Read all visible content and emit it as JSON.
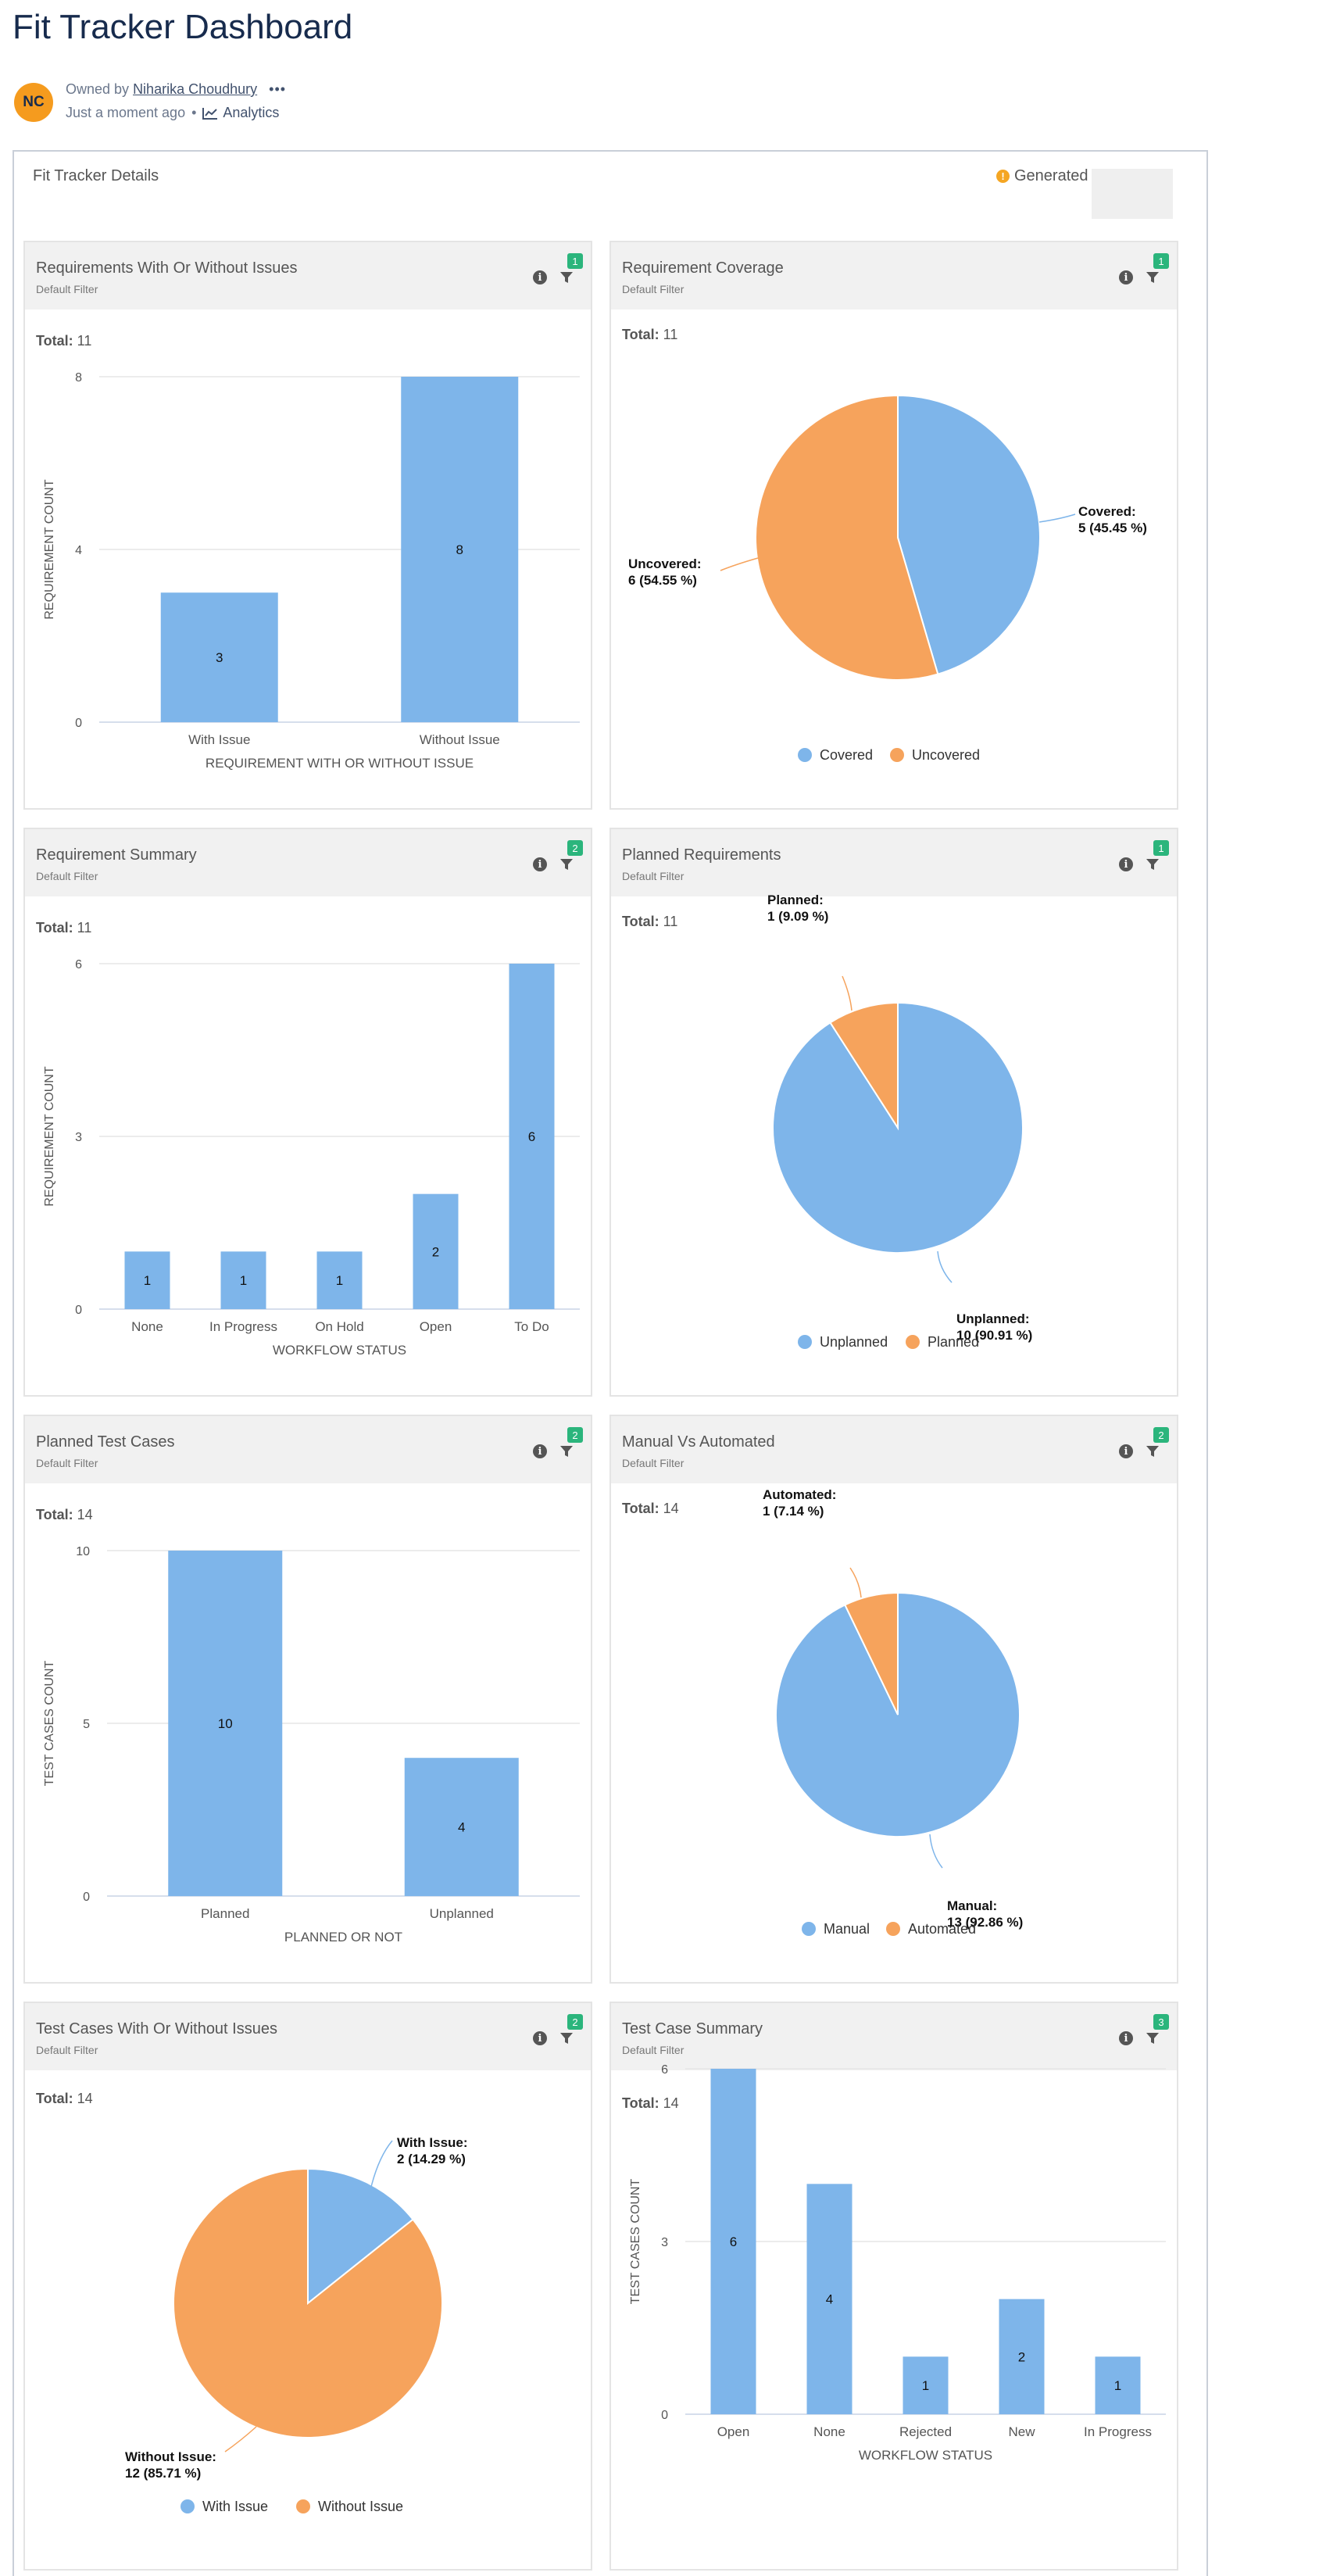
{
  "page": {
    "title": "Fit Tracker Dashboard",
    "avatar_initials": "NC",
    "owned_by_prefix": "Owned by",
    "owner": "Niharika Choudhury",
    "more": "•••",
    "time": "Just a moment ago",
    "separator": "•",
    "analytics": "Analytics"
  },
  "panel": {
    "title": "Fit Tracker Details",
    "generated": "Generated"
  },
  "colors": {
    "blue": "#7eb5ea",
    "orange": "#f6a35c",
    "badge": "#2bb57c"
  },
  "cards": [
    {
      "title": "Requirements With Or Without Issues",
      "subtitle": "Default Filter",
      "badge": "1",
      "total_label": "Total:",
      "total": "11",
      "chart_data": {
        "type": "bar",
        "categories": [
          "With Issue",
          "Without Issue"
        ],
        "values": [
          3,
          8
        ],
        "ylim": [
          0,
          8
        ],
        "yticks": [
          0,
          4,
          8
        ],
        "xlabel": "REQUIREMENT WITH OR WITHOUT ISSUE",
        "ylabel": "REQUIREMENT COUNT",
        "grid": true
      }
    },
    {
      "title": "Requirement Coverage",
      "subtitle": "Default Filter",
      "badge": "1",
      "total_label": "Total:",
      "total": "11",
      "chart_data": {
        "type": "pie",
        "slices": [
          {
            "name": "Covered",
            "value": 5,
            "label": [
              "Covered:",
              "5 (45.45 %)"
            ],
            "color": "#7eb5ea"
          },
          {
            "name": "Uncovered",
            "value": 6,
            "label": [
              "Uncovered:",
              "6 (54.55 %)"
            ],
            "color": "#f6a35c"
          }
        ],
        "legend": [
          "Covered",
          "Uncovered"
        ],
        "legend_position": "bottom"
      }
    },
    {
      "title": "Requirement Summary",
      "subtitle": "Default Filter",
      "badge": "2",
      "total_label": "Total:",
      "total": "11",
      "chart_data": {
        "type": "bar",
        "categories": [
          "None",
          "In Progress",
          "On Hold",
          "Open",
          "To Do"
        ],
        "values": [
          1,
          1,
          1,
          2,
          6
        ],
        "ylim": [
          0,
          6
        ],
        "yticks": [
          0,
          3,
          6
        ],
        "xlabel": "WORKFLOW STATUS",
        "ylabel": "REQUIREMENT COUNT",
        "grid": true
      }
    },
    {
      "title": "Planned Requirements",
      "subtitle": "Default Filter",
      "badge": "1",
      "total_label": "Total:",
      "total": "11",
      "chart_data": {
        "type": "pie",
        "slices": [
          {
            "name": "Unplanned",
            "value": 10,
            "label": [
              "Unplanned:",
              "10 (90.91 %)"
            ],
            "color": "#7eb5ea"
          },
          {
            "name": "Planned",
            "value": 1,
            "label": [
              "Planned:",
              "1 (9.09 %)"
            ],
            "color": "#f6a35c"
          }
        ],
        "legend": [
          "Unplanned",
          "Planned"
        ],
        "legend_position": "bottom"
      }
    },
    {
      "title": "Planned Test Cases",
      "subtitle": "Default Filter",
      "badge": "2",
      "total_label": "Total:",
      "total": "14",
      "chart_data": {
        "type": "bar",
        "categories": [
          "Planned",
          "Unplanned"
        ],
        "values": [
          10,
          4
        ],
        "ylim": [
          0,
          10
        ],
        "yticks": [
          0,
          5,
          10
        ],
        "xlabel": "PLANNED OR NOT",
        "ylabel": "TEST CASES COUNT",
        "grid": true
      }
    },
    {
      "title": "Manual Vs Automated",
      "subtitle": "Default Filter",
      "badge": "2",
      "total_label": "Total:",
      "total": "14",
      "chart_data": {
        "type": "pie",
        "slices": [
          {
            "name": "Manual",
            "value": 13,
            "label": [
              "Manual:",
              "13 (92.86 %)"
            ],
            "color": "#7eb5ea"
          },
          {
            "name": "Automated",
            "value": 1,
            "label": [
              "Automated:",
              "1 (7.14 %)"
            ],
            "color": "#f6a35c"
          }
        ],
        "legend": [
          "Manual",
          "Automated"
        ],
        "legend_position": "bottom"
      }
    },
    {
      "title": "Test Cases With Or Without Issues",
      "subtitle": "Default Filter",
      "badge": "2",
      "total_label": "Total:",
      "total": "14",
      "chart_data": {
        "type": "pie",
        "slices": [
          {
            "name": "With Issue",
            "value": 2,
            "label": [
              "With Issue:",
              "2 (14.29 %)"
            ],
            "color": "#7eb5ea"
          },
          {
            "name": "Without Issue",
            "value": 12,
            "label": [
              "Without Issue:",
              "12 (85.71 %)"
            ],
            "color": "#f6a35c"
          }
        ],
        "legend": [
          "With Issue",
          "Without Issue"
        ],
        "legend_position": "bottom"
      }
    },
    {
      "title": "Test Case Summary",
      "subtitle": "Default Filter",
      "badge": "3",
      "total_label": "Total:",
      "total": "14",
      "chart_data": {
        "type": "bar",
        "categories": [
          "Open",
          "None",
          "Rejected",
          "New",
          "In Progress"
        ],
        "values": [
          6,
          4,
          1,
          2,
          1
        ],
        "ylim": [
          0,
          6
        ],
        "yticks": [
          0,
          3,
          6
        ],
        "xlabel": "WORKFLOW STATUS",
        "ylabel": "TEST CASES COUNT",
        "grid": true
      }
    }
  ]
}
